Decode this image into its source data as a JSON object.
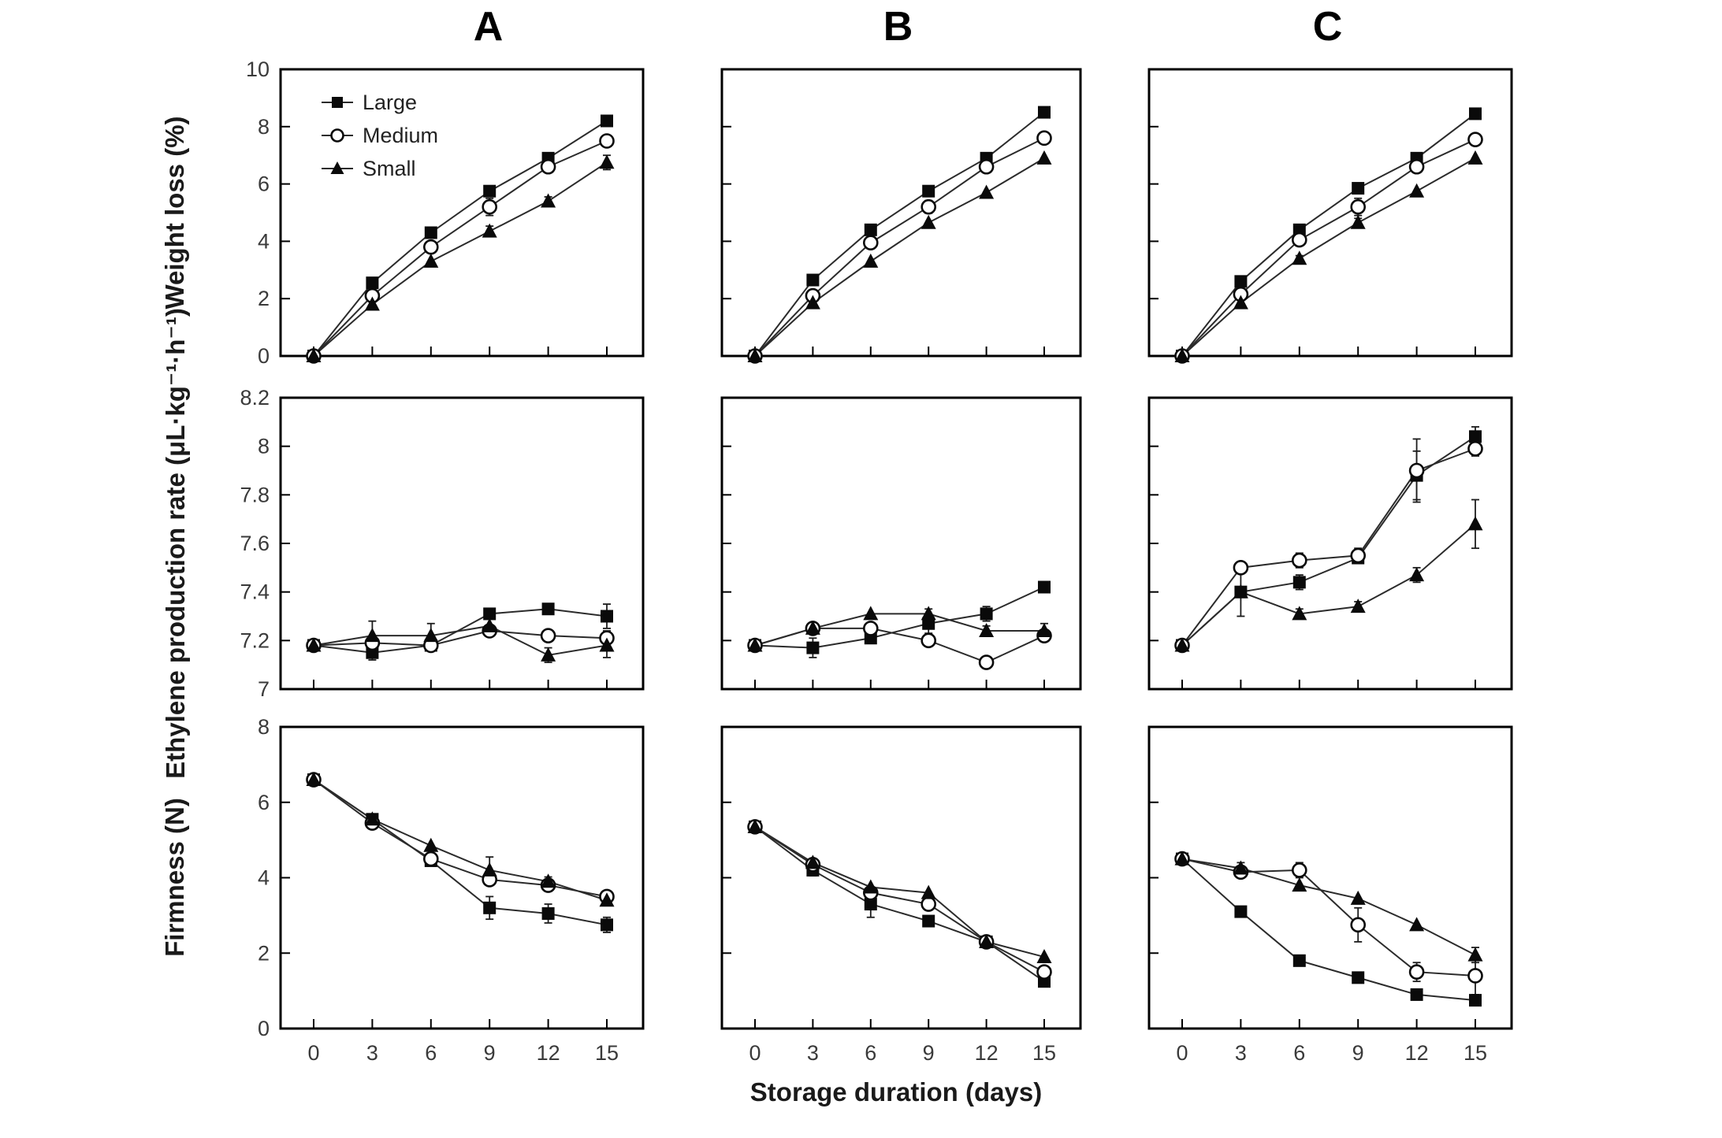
{
  "figure": {
    "column_titles": [
      "A",
      "B",
      "C"
    ],
    "xlabel": "Storage duration (days)",
    "legend": [
      {
        "label": "Large",
        "marker": "filled-square"
      },
      {
        "label": "Medium",
        "marker": "open-circle"
      },
      {
        "label": "Small",
        "marker": "filled-triangle"
      }
    ],
    "colors": {
      "ink": "#0a0a0a",
      "line": "#2b2b2b",
      "tick_text": "#3a3a3a",
      "background": "#ffffff"
    }
  },
  "chart_data": {
    "type": "line",
    "x": [
      0,
      3,
      6,
      9,
      12,
      15
    ],
    "x_tick_labels": [
      "0",
      "3",
      "6",
      "9",
      "12",
      "15"
    ],
    "xlabel": "Storage duration (days)",
    "legend_position": "top-left-first-panel",
    "grid": false,
    "columns": [
      "A",
      "B",
      "C"
    ],
    "rows": [
      {
        "ylabel": "Weight loss (%)",
        "ylim": [
          0,
          10
        ],
        "yticks": [
          0,
          2,
          4,
          6,
          8,
          10
        ],
        "ytick_labels": [
          "0",
          "2",
          "4",
          "6",
          "8",
          "10"
        ],
        "panels": {
          "A": {
            "Large": {
              "values": [
                0,
                2.55,
                4.3,
                5.75,
                6.9,
                8.2
              ],
              "err": [
                0,
                0.15,
                0,
                0.1,
                0.12,
                0
              ]
            },
            "Medium": {
              "values": [
                0,
                2.1,
                3.8,
                5.2,
                6.6,
                7.5
              ],
              "err": [
                0,
                0,
                0,
                0.3,
                0,
                0
              ]
            },
            "Small": {
              "values": [
                0,
                1.8,
                3.3,
                4.35,
                5.4,
                6.75
              ],
              "err": [
                0,
                0,
                0,
                0.18,
                0.15,
                0.25
              ]
            }
          },
          "B": {
            "Large": {
              "values": [
                0,
                2.65,
                4.4,
                5.75,
                6.9,
                8.5
              ],
              "err": [
                0,
                0,
                0,
                0,
                0,
                0
              ]
            },
            "Medium": {
              "values": [
                0,
                2.1,
                3.95,
                5.2,
                6.6,
                7.6
              ],
              "err": [
                0,
                0,
                0,
                0.22,
                0,
                0
              ]
            },
            "Small": {
              "values": [
                0,
                1.85,
                3.3,
                4.65,
                5.7,
                6.9
              ],
              "err": [
                0,
                0.1,
                0,
                0,
                0,
                0
              ]
            }
          },
          "C": {
            "Large": {
              "values": [
                0,
                2.6,
                4.4,
                5.85,
                6.9,
                8.45
              ],
              "err": [
                0,
                0,
                0,
                0,
                0,
                0
              ]
            },
            "Medium": {
              "values": [
                0,
                2.15,
                4.05,
                5.2,
                6.6,
                7.55
              ],
              "err": [
                0,
                0.12,
                0,
                0.3,
                0,
                0
              ]
            },
            "Small": {
              "values": [
                0,
                1.85,
                3.4,
                4.65,
                5.75,
                6.9
              ],
              "err": [
                0,
                0,
                0.1,
                0.15,
                0,
                0
              ]
            }
          }
        }
      },
      {
        "ylabel": "Ethylene production rate (μL·kg⁻¹·h⁻¹)",
        "ylim": [
          7,
          8.2
        ],
        "yticks": [
          7,
          7.2,
          7.4,
          7.6,
          7.8,
          8,
          8.2
        ],
        "ytick_labels": [
          "7",
          "7.2",
          "7.4",
          "7.6",
          "7.8",
          "8",
          "8.2"
        ],
        "panels": {
          "A": {
            "Large": {
              "values": [
                7.18,
                7.15,
                7.18,
                7.31,
                7.33,
                7.3
              ],
              "err": [
                0,
                0.03,
                0,
                0,
                0,
                0.05
              ]
            },
            "Medium": {
              "values": [
                7.18,
                7.19,
                7.18,
                7.24,
                7.22,
                7.21
              ],
              "err": [
                0,
                0,
                0.02,
                0,
                0,
                0.03
              ]
            },
            "Small": {
              "values": [
                7.18,
                7.22,
                7.22,
                7.26,
                7.14,
                7.18
              ],
              "err": [
                0,
                0.06,
                0.05,
                0,
                0.03,
                0.05
              ]
            }
          },
          "B": {
            "Large": {
              "values": [
                7.18,
                7.17,
                7.21,
                7.27,
                7.31,
                7.42
              ],
              "err": [
                0,
                0.04,
                0,
                0.04,
                0.03,
                0
              ]
            },
            "Medium": {
              "values": [
                7.18,
                7.25,
                7.25,
                7.2,
                7.11,
                7.22
              ],
              "err": [
                0,
                0,
                0,
                0,
                0,
                0
              ]
            },
            "Small": {
              "values": [
                7.18,
                7.25,
                7.31,
                7.31,
                7.24,
                7.24
              ],
              "err": [
                0,
                0,
                0,
                0.02,
                0.02,
                0.03
              ]
            }
          },
          "C": {
            "Large": {
              "values": [
                7.18,
                7.4,
                7.44,
                7.54,
                7.88,
                8.04
              ],
              "err": [
                0,
                0.1,
                0.03,
                0.02,
                0.1,
                0.04
              ]
            },
            "Medium": {
              "values": [
                7.18,
                7.5,
                7.53,
                7.55,
                7.9,
                7.99
              ],
              "err": [
                0,
                0.02,
                0.03,
                0.03,
                0.13,
                0.03
              ]
            },
            "Small": {
              "values": [
                7.18,
                7.4,
                7.31,
                7.34,
                7.47,
                7.68
              ],
              "err": [
                0,
                0,
                0.02,
                0.02,
                0.03,
                0.1
              ]
            }
          }
        }
      },
      {
        "ylabel": "Firmness (N)",
        "ylim": [
          0,
          8
        ],
        "yticks": [
          0,
          2,
          4,
          6,
          8
        ],
        "ytick_labels": [
          "0",
          "2",
          "4",
          "6",
          "8"
        ],
        "panels": {
          "A": {
            "Large": {
              "values": [
                6.6,
                5.55,
                4.45,
                3.2,
                3.05,
                2.75
              ],
              "err": [
                0,
                0,
                0.12,
                0.3,
                0.25,
                0.2
              ]
            },
            "Medium": {
              "values": [
                6.6,
                5.45,
                4.5,
                3.95,
                3.8,
                3.5
              ],
              "err": [
                0,
                0,
                0,
                0.12,
                0.15,
                0
              ]
            },
            "Small": {
              "values": [
                6.6,
                5.55,
                4.85,
                4.2,
                3.9,
                3.4
              ],
              "err": [
                0,
                0,
                0,
                0.35,
                0.12,
                0
              ]
            }
          },
          "B": {
            "Large": {
              "values": [
                5.35,
                4.2,
                3.3,
                2.85,
                2.3,
                1.25
              ],
              "err": [
                0,
                0.15,
                0.35,
                0,
                0,
                0.1
              ]
            },
            "Medium": {
              "values": [
                5.35,
                4.35,
                3.6,
                3.3,
                2.3,
                1.5
              ],
              "err": [
                0,
                0,
                0,
                0.12,
                0,
                0.12
              ]
            },
            "Small": {
              "values": [
                5.35,
                4.4,
                3.75,
                3.6,
                2.3,
                1.9
              ],
              "err": [
                0,
                0.08,
                0,
                0,
                0,
                0
              ]
            }
          },
          "C": {
            "Large": {
              "values": [
                4.5,
                3.1,
                1.8,
                1.35,
                0.9,
                0.75
              ],
              "err": [
                0,
                0,
                0,
                0,
                0,
                0
              ]
            },
            "Medium": {
              "values": [
                4.5,
                4.15,
                4.2,
                2.75,
                1.5,
                1.4
              ],
              "err": [
                0,
                0.1,
                0.2,
                0.45,
                0.25,
                0.5
              ]
            },
            "Small": {
              "values": [
                4.5,
                4.25,
                3.8,
                3.45,
                2.75,
                1.95
              ],
              "err": [
                0,
                0.15,
                0,
                0,
                0,
                0.2
              ]
            }
          }
        }
      }
    ]
  }
}
